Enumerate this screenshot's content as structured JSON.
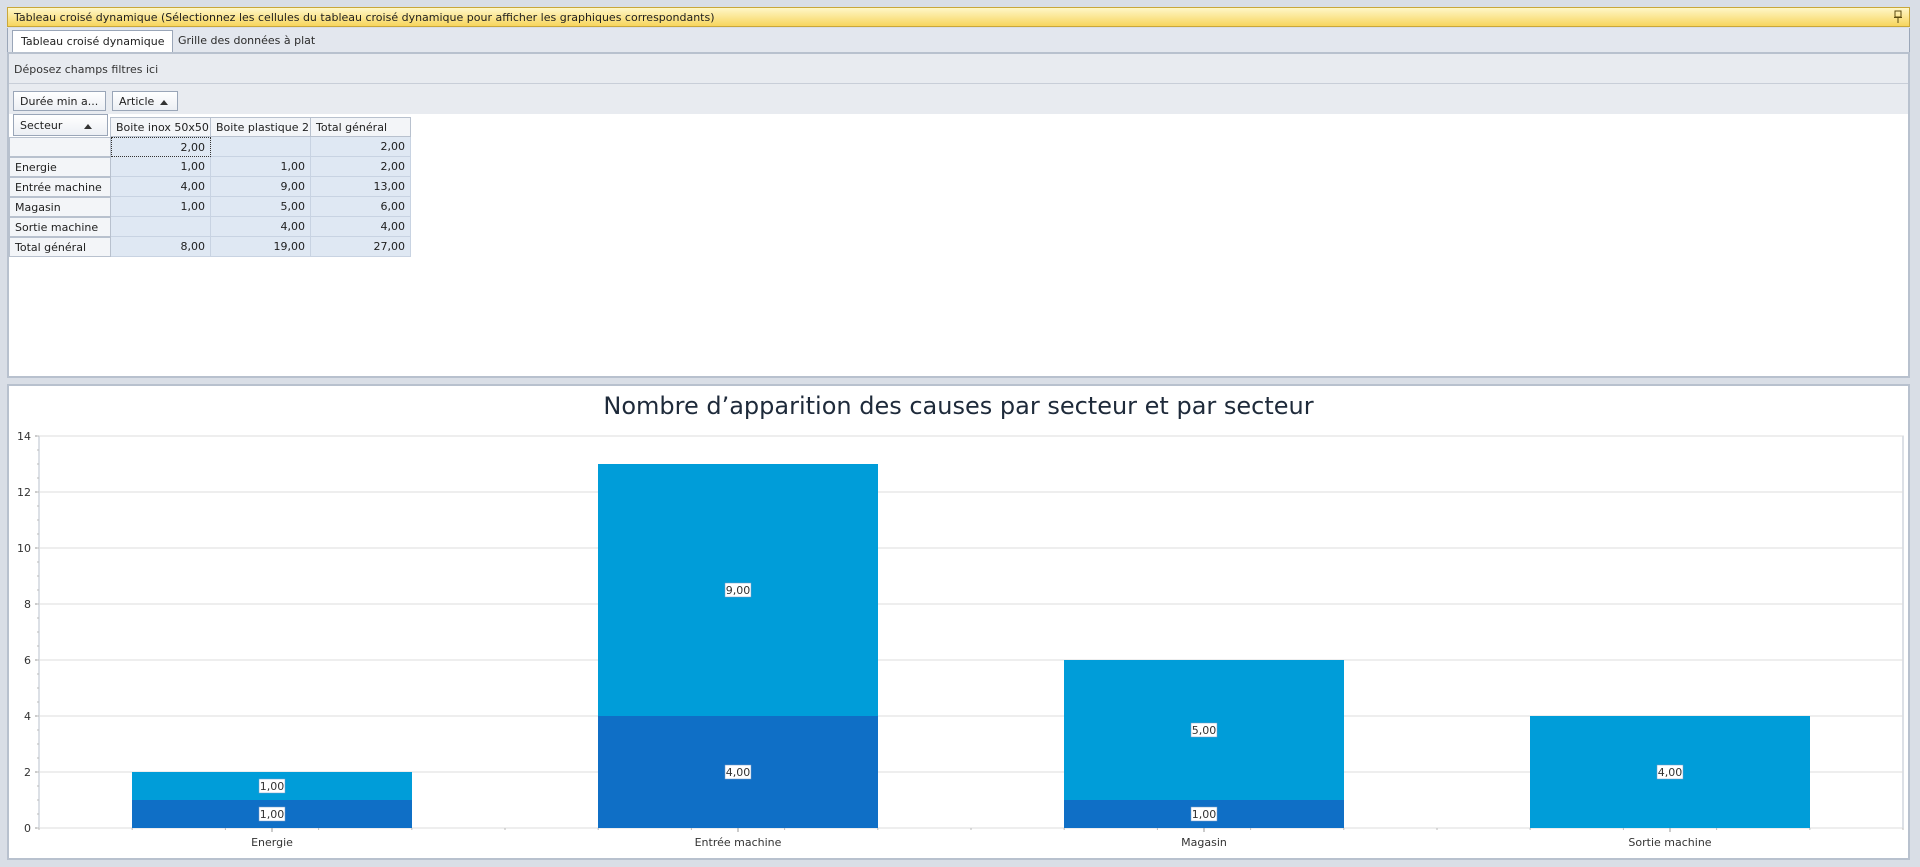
{
  "titlebar": {
    "title": "Tableau croisé dynamique (Sélectionnez les cellules du tableau croisé dynamique pour afficher les graphiques correspondants)"
  },
  "tabs": [
    {
      "label": "Tableau croisé dynamique",
      "active": true
    },
    {
      "label": "Grille des données à plat",
      "active": false
    }
  ],
  "pivot": {
    "filter_placeholder": "Déposez champs filtres ici",
    "data_field": "Durée min a...",
    "column_field": "Article",
    "row_field": "Secteur",
    "columns": [
      "Boite inox  50x50",
      "Boite plastique 2...",
      "Total général"
    ],
    "rows": [
      {
        "label": "",
        "values": [
          "2,00",
          "",
          "2,00"
        ]
      },
      {
        "label": "Energie",
        "values": [
          "1,00",
          "1,00",
          "2,00"
        ]
      },
      {
        "label": "Entrée machine",
        "values": [
          "4,00",
          "9,00",
          "13,00"
        ]
      },
      {
        "label": "Magasin",
        "values": [
          "1,00",
          "5,00",
          "6,00"
        ]
      },
      {
        "label": "Sortie machine",
        "values": [
          "",
          "4,00",
          "4,00"
        ]
      },
      {
        "label": "Total général",
        "values": [
          "8,00",
          "19,00",
          "27,00"
        ]
      }
    ]
  },
  "colors": {
    "series_inox": "#0f6fc6",
    "series_plastique": "#009dd9",
    "titlebar": "#f7d55d"
  },
  "chart_data": {
    "type": "bar",
    "stacked": true,
    "title": "Nombre d’apparition des causes par secteur et par secteur",
    "categories": [
      "Energie",
      "Entrée machine",
      "Magasin",
      "Sortie machine"
    ],
    "series": [
      {
        "values": [
          1,
          4,
          1,
          0
        ],
        "labels": [
          "1,00",
          "4,00",
          "1,00",
          ""
        ]
      },
      {
        "values": [
          1,
          9,
          5,
          4
        ],
        "labels": [
          "1,00",
          "9,00",
          "5,00",
          "4,00"
        ]
      }
    ],
    "ylim": [
      0,
      14
    ],
    "yticks": [
      0,
      2,
      4,
      6,
      8,
      10,
      12,
      14
    ],
    "grid": true,
    "legend": "none"
  }
}
